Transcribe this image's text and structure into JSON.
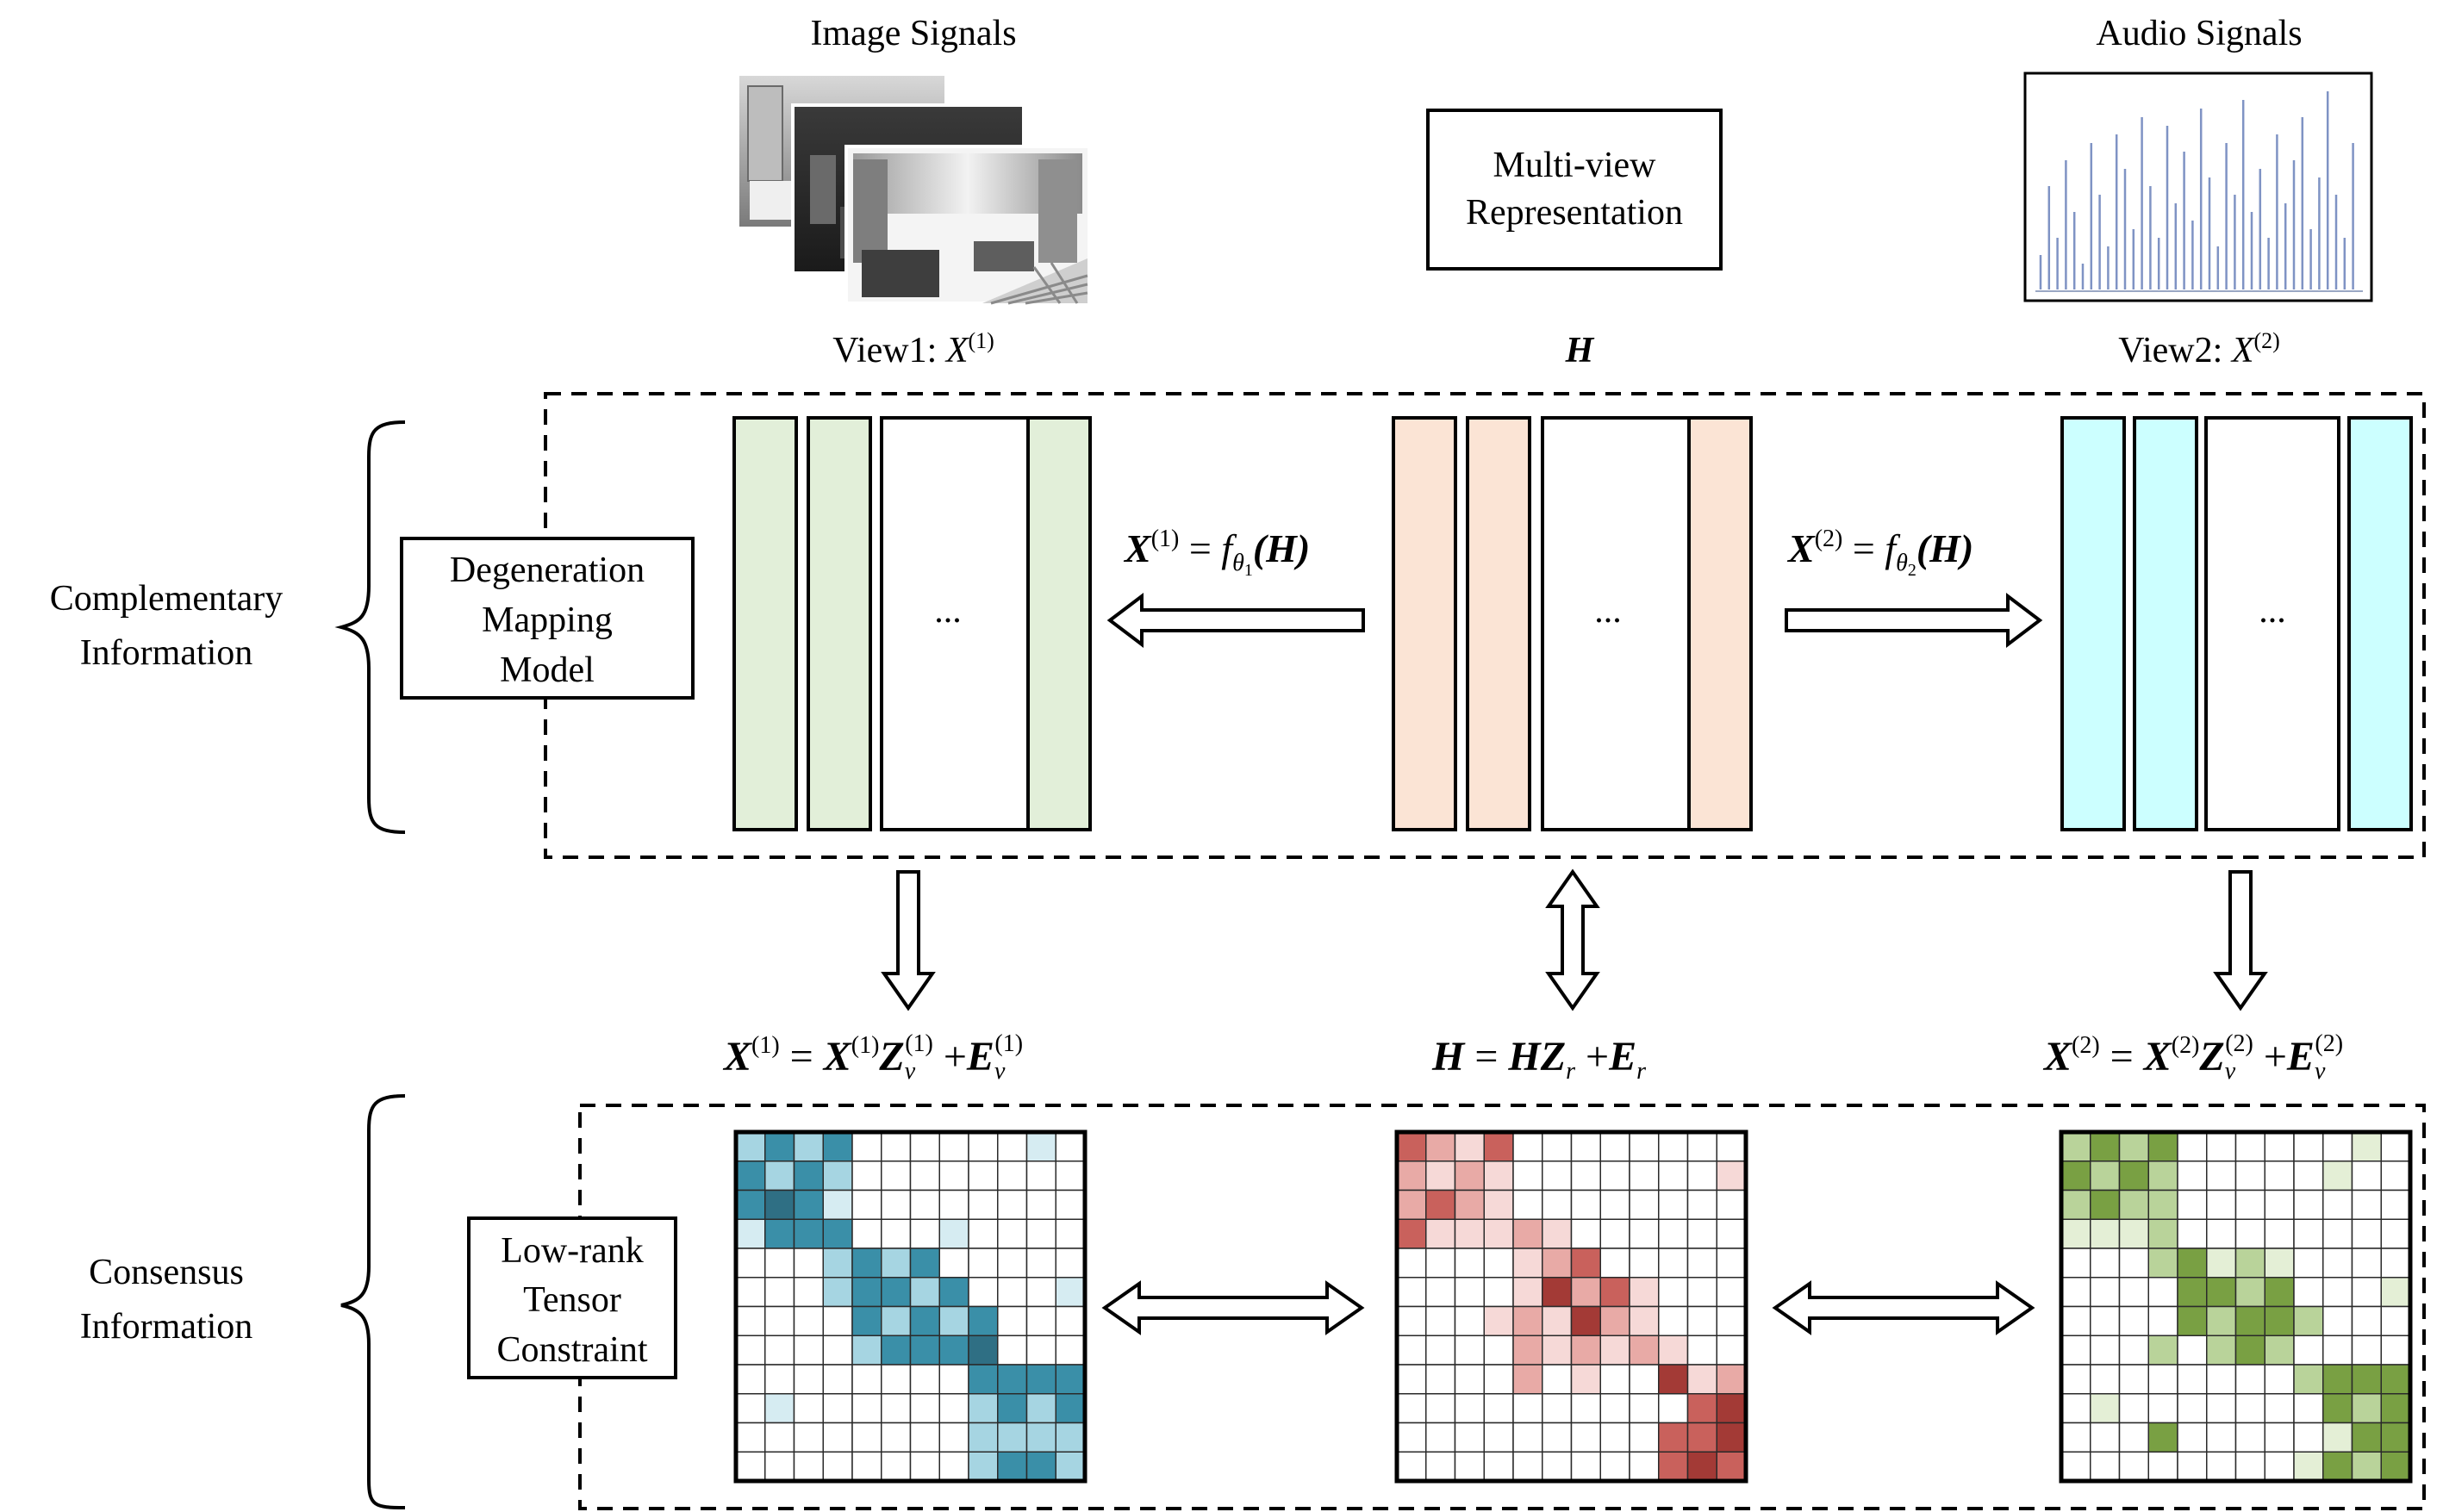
{
  "top": {
    "image_signals": "Image Signals",
    "audio_signals": "Audio Signals",
    "multiview_line1": "Multi-view",
    "multiview_line2": "Representation",
    "view1_prefix": "View1: ",
    "view1_var": "X",
    "view1_sup": "(1)",
    "h_label": "H",
    "view2_prefix": "View2: ",
    "view2_var": "X",
    "view2_sup": "(2)"
  },
  "side": {
    "complementary_line1": "Complementary",
    "complementary_line2": "Information",
    "consensus_line1": "Consensus",
    "consensus_line2": "Information"
  },
  "boxes": {
    "degeneration_line1": "Degeneration",
    "degeneration_line2": "Mapping",
    "degeneration_line3": "Model",
    "lowrank_line1": "Low-rank",
    "lowrank_line2": "Tensor",
    "lowrank_line3": "Constraint"
  },
  "ellipsis": "...",
  "mapping_eq1": {
    "lhs": "X",
    "sup": "(1)",
    "eq": " = ",
    "f": "f",
    "sub1": "θ",
    "sub2": "1",
    "arg": "(H)"
  },
  "mapping_eq2": {
    "lhs": "X",
    "sup": "(2)",
    "eq": " = ",
    "f": "f",
    "sub1": "θ",
    "sub2": "2",
    "arg": "(H)"
  },
  "self_eq1": {
    "a": "X",
    "a_sup": "(1)",
    "eq": " = ",
    "b": "X",
    "b_sup": "(1)",
    "c": "Z",
    "c_sub": "v",
    "c_sup": "(1)",
    "plus": " +",
    "d": "E",
    "d_sub": "v",
    "d_sup": "(1)"
  },
  "self_eq_h": {
    "a": "H",
    "eq": " = ",
    "b": "HZ",
    "b_sub": "r",
    "plus": " +",
    "d": "E",
    "d_sub": "r"
  },
  "self_eq2": {
    "a": "X",
    "a_sup": "(2)",
    "eq": " = ",
    "b": "X",
    "b_sup": "(2)",
    "c": "Z",
    "c_sub": "v",
    "c_sup": "(2)",
    "plus": " +",
    "d": "E",
    "d_sub": "v",
    "d_sup": "(2)"
  },
  "colors": {
    "view1_block": "#e2efd9",
    "h_block": "#fbe4d5",
    "view2_block": "#ccffff",
    "teal_dark": "#2f6f84",
    "teal_mid": "#3a8fa8",
    "teal_light": "#a6d5e2",
    "teal_pale": "#d6ecf2",
    "red_dark": "#a33a36",
    "red_mid": "#c9615c",
    "red_light": "#e8aaa6",
    "red_pale": "#f6d9d7",
    "green_dark": "#5c8a2e",
    "green_mid": "#79a043",
    "green_light": "#b9d39a",
    "green_pale": "#e4efd6"
  }
}
